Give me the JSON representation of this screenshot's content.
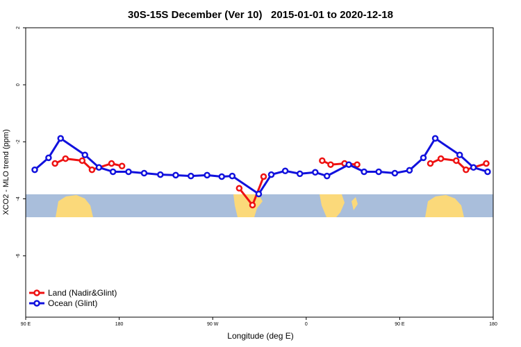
{
  "chart_data": {
    "type": "line",
    "title": "30S-15S December (Ver 10)   2015-01-01 to 2020-12-18",
    "x_label": "Longitude (deg E)",
    "y_label": "XCO2 - MLO trend (ppm)",
    "xlim": [
      90,
      540
    ],
    "ylim": [
      -8.15,
      2
    ],
    "xticks": [
      {
        "value": 90,
        "label": "90 E"
      },
      {
        "value": 180,
        "label": "180"
      },
      {
        "value": 270,
        "label": "90 W"
      },
      {
        "value": 360,
        "label": "0"
      },
      {
        "value": 450,
        "label": "90 E"
      },
      {
        "value": 540,
        "label": "180"
      }
    ],
    "yticks": [
      2,
      0,
      -2,
      -4,
      -6
    ],
    "legend": "bottom-left",
    "series": [
      {
        "name": "Land (Nadir&Glint)",
        "color": "#ee1111",
        "x": [
          118.2,
          128.3,
          144.4,
          153.8,
          172.6,
          182.7,
          null,
          295.5,
          308.3,
          319,
          null,
          375.4,
          383.5,
          396.9,
          409,
          null,
          479.5,
          489.6,
          504.4,
          513.8,
          533.3
        ],
        "values": [
          -2.76,
          -2.59,
          -2.66,
          -2.98,
          -2.76,
          -2.85,
          null,
          -3.63,
          -4.22,
          -3.22,
          null,
          -2.66,
          -2.8,
          -2.76,
          -2.8,
          null,
          -2.76,
          -2.59,
          -2.66,
          -2.98,
          -2.76
        ]
      },
      {
        "name": "Ocean (Glint)",
        "color": "#1111dd",
        "x": [
          98.7,
          112,
          123.6,
          147,
          160.5,
          174,
          189,
          204,
          219.6,
          234.4,
          249,
          264.6,
          278.7,
          288.8,
          314.3,
          326.4,
          339.8,
          353.9,
          368.7,
          380,
          401,
          415.7,
          429.8,
          445.3,
          459.4,
          472.8,
          484.2,
          507.7,
          521,
          534.6
        ],
        "values": [
          -2.98,
          -2.56,
          -1.88,
          -2.46,
          -2.9,
          -3.05,
          -3.05,
          -3.1,
          -3.15,
          -3.17,
          -3.2,
          -3.17,
          -3.22,
          -3.2,
          -3.83,
          -3.15,
          -3.02,
          -3.12,
          -3.07,
          -3.2,
          -2.8,
          -3.05,
          -3.05,
          -3.1,
          -3.0,
          -2.56,
          -1.88,
          -2.46,
          -2.9,
          -3.05
        ]
      }
    ]
  }
}
